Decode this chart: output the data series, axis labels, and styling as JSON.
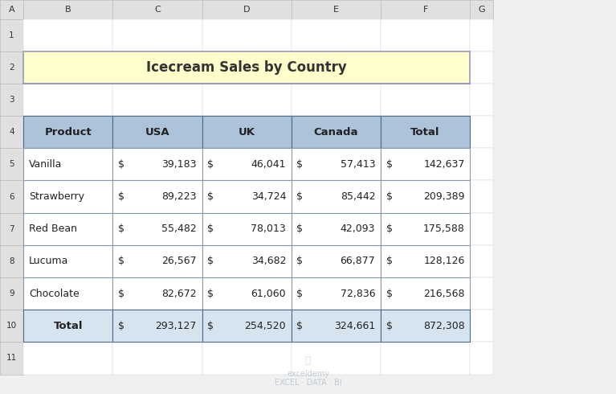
{
  "title": "Icecream Sales by Country",
  "title_bg": "#FFFFCC",
  "title_border": "#9999BB",
  "col_headers": [
    "Product",
    "USA",
    "UK",
    "Canada",
    "Total"
  ],
  "header_bg": "#ADC3D9",
  "header_border": "#5B7B9A",
  "rows": [
    [
      "Vanilla",
      "$ 39,183",
      "$ 46,041",
      "$ 57,413",
      "$ 142,637"
    ],
    [
      "Strawberry",
      "$ 89,223",
      "$ 34,724",
      "$ 85,442",
      "$ 209,389"
    ],
    [
      "Red Bean",
      "$ 55,482",
      "$ 78,013",
      "$ 42,093",
      "$ 175,588"
    ],
    [
      "Lucuma",
      "$ 26,567",
      "$ 34,682",
      "$ 66,877",
      "$ 128,126"
    ],
    [
      "Chocolate",
      "$ 82,672",
      "$ 61,060",
      "$ 72,836",
      "$ 216,568"
    ]
  ],
  "total_row": [
    "Total",
    "$ 293,127",
    "$ 254,520",
    "$ 324,661",
    "$ 872,308"
  ],
  "total_row_bg": "#D6E4F0",
  "data_row_bg": "#FFFFFF",
  "data_border": "#8899AA",
  "spreadsheet_bg": "#F0F0F0",
  "col_header_border": "#4A6A8A",
  "row_label_bg": "#E8E8E8",
  "excel_col_bg": "#E0E0E0",
  "excel_row_bg": "#E0E0E0",
  "logo_color": "#AABBCC",
  "fig_width": 7.67,
  "fig_height": 4.9
}
